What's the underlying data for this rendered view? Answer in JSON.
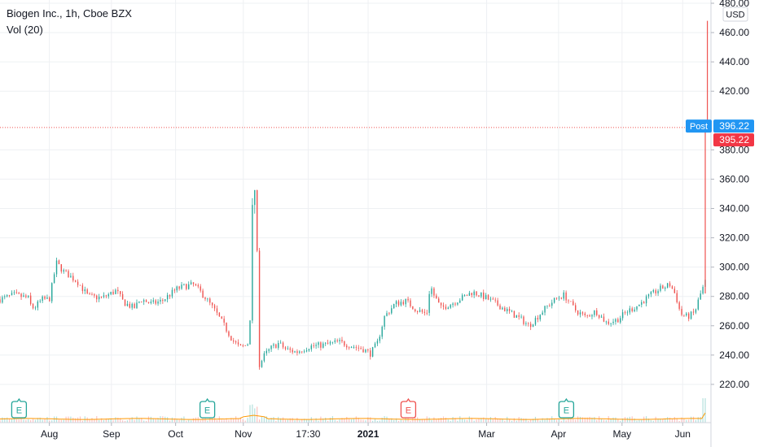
{
  "chart_data": {
    "type": "candlestick",
    "title": "Biogen Inc., 1h, Cboe BZX",
    "indicator": "Vol (20)",
    "currency": "USD",
    "ylim": [
      205,
      480
    ],
    "y_ticks": [
      {
        "value": 480,
        "label": "480.00"
      },
      {
        "value": 460,
        "label": "460.00"
      },
      {
        "value": 440,
        "label": "440.00"
      },
      {
        "value": 420,
        "label": "420.00"
      },
      {
        "value": 380,
        "label": "380.00"
      },
      {
        "value": 360,
        "label": "360.00"
      },
      {
        "value": 340,
        "label": "340.00"
      },
      {
        "value": 320,
        "label": "320.00"
      },
      {
        "value": 300,
        "label": "300.00"
      },
      {
        "value": 280,
        "label": "280.00"
      },
      {
        "value": 260,
        "label": "260.00"
      },
      {
        "value": 240,
        "label": "240.00"
      },
      {
        "value": 220,
        "label": "220.00"
      }
    ],
    "x_ticks": [
      {
        "label": "Aug",
        "t": 0.07,
        "bold": false
      },
      {
        "label": "Sep",
        "t": 0.158,
        "bold": false
      },
      {
        "label": "Oct",
        "t": 0.249,
        "bold": false
      },
      {
        "label": "Nov",
        "t": 0.345,
        "bold": false
      },
      {
        "label": "17:30",
        "t": 0.437,
        "bold": false
      },
      {
        "label": "2021",
        "t": 0.522,
        "bold": true
      },
      {
        "label": "Mar",
        "t": 0.69,
        "bold": false
      },
      {
        "label": "Apr",
        "t": 0.792,
        "bold": false
      },
      {
        "label": "May",
        "t": 0.882,
        "bold": false
      },
      {
        "label": "Jun",
        "t": 0.968,
        "bold": false
      }
    ],
    "price_path": [
      [
        0.0,
        278
      ],
      [
        0.02,
        281
      ],
      [
        0.04,
        279
      ],
      [
        0.045,
        272
      ],
      [
        0.05,
        273
      ],
      [
        0.06,
        278
      ],
      [
        0.07,
        278
      ],
      [
        0.08,
        303
      ],
      [
        0.09,
        297
      ],
      [
        0.11,
        290
      ],
      [
        0.125,
        280
      ],
      [
        0.145,
        279
      ],
      [
        0.165,
        284
      ],
      [
        0.175,
        276
      ],
      [
        0.19,
        272
      ],
      [
        0.2,
        278
      ],
      [
        0.215,
        275
      ],
      [
        0.23,
        277
      ],
      [
        0.25,
        285
      ],
      [
        0.262,
        287
      ],
      [
        0.275,
        288
      ],
      [
        0.29,
        280
      ],
      [
        0.305,
        270
      ],
      [
        0.318,
        260
      ],
      [
        0.33,
        250
      ],
      [
        0.34,
        245
      ],
      [
        0.35,
        247
      ],
      [
        0.354,
        250
      ],
      [
        0.356,
        320
      ],
      [
        0.358,
        350
      ],
      [
        0.36,
        355
      ],
      [
        0.362,
        345
      ],
      [
        0.364,
        330
      ],
      [
        0.367,
        232
      ],
      [
        0.375,
        240
      ],
      [
        0.385,
        245
      ],
      [
        0.395,
        248
      ],
      [
        0.405,
        244
      ],
      [
        0.42,
        242
      ],
      [
        0.44,
        246
      ],
      [
        0.46,
        247
      ],
      [
        0.48,
        249
      ],
      [
        0.5,
        246
      ],
      [
        0.515,
        244
      ],
      [
        0.525,
        241
      ],
      [
        0.535,
        248
      ],
      [
        0.545,
        266
      ],
      [
        0.56,
        275
      ],
      [
        0.575,
        277
      ],
      [
        0.59,
        271
      ],
      [
        0.605,
        268
      ],
      [
        0.61,
        288
      ],
      [
        0.615,
        281
      ],
      [
        0.625,
        272
      ],
      [
        0.64,
        275
      ],
      [
        0.655,
        279
      ],
      [
        0.67,
        283
      ],
      [
        0.685,
        280
      ],
      [
        0.7,
        276
      ],
      [
        0.72,
        270
      ],
      [
        0.74,
        264
      ],
      [
        0.75,
        260
      ],
      [
        0.76,
        265
      ],
      [
        0.775,
        273
      ],
      [
        0.79,
        279
      ],
      [
        0.8,
        281
      ],
      [
        0.815,
        271
      ],
      [
        0.83,
        266
      ],
      [
        0.845,
        270
      ],
      [
        0.86,
        262
      ],
      [
        0.875,
        264
      ],
      [
        0.89,
        270
      ],
      [
        0.905,
        274
      ],
      [
        0.92,
        280
      ],
      [
        0.935,
        285
      ],
      [
        0.95,
        288
      ],
      [
        0.958,
        281
      ],
      [
        0.965,
        268
      ],
      [
        0.975,
        266
      ],
      [
        0.985,
        269
      ],
      [
        0.992,
        280
      ],
      [
        1.0,
        290
      ]
    ],
    "spike_bars": [
      {
        "t": 1.0,
        "low": 282,
        "high": 396.22,
        "color": "red"
      },
      {
        "t": 1.003,
        "low": 396,
        "high": 468,
        "color": "red"
      }
    ],
    "current_price_line": 395.22,
    "labels": {
      "post_tag": "Post",
      "post_value": "396.22",
      "last_value": "395.22"
    },
    "earnings_markers": [
      {
        "label": "E",
        "t": 0.027,
        "color": "#26a69a"
      },
      {
        "label": "E",
        "t": 0.294,
        "color": "#26a69a"
      },
      {
        "label": "E",
        "t": 0.579,
        "color": "#ef5350"
      },
      {
        "label": "E",
        "t": 0.803,
        "color": "#26a69a"
      }
    ],
    "colors": {
      "up": "#26a69a",
      "down": "#ef5350",
      "volume_ma": "#ff9800",
      "post_bg": "#2196f3",
      "last_bg": "#f23645",
      "grid": "#eef0f3",
      "axis_text": "#131722"
    }
  }
}
